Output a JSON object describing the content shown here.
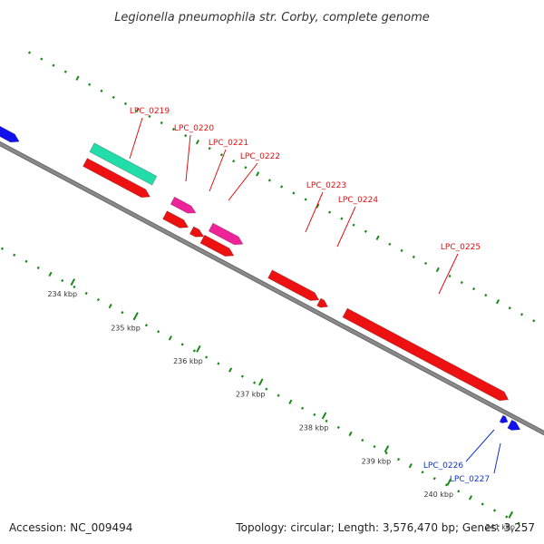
{
  "title": "Legionella pneumophila str. Corby, complete genome",
  "accession": "Accession: NC_009494",
  "summary": "Topology: circular; Length: 3,576,470 bp; Genes: 3,257",
  "colors": {
    "backbone": "#8a8a8a",
    "dots": "#1a8a1a",
    "cds_red": "#ee1111",
    "cds_magenta": "#ee2299",
    "cds_teal": "#22ddaa",
    "cds_blue": "#1111ee",
    "label_red": "#dd1111",
    "label_blue": "#1133cc"
  },
  "scale": {
    "ticks": [
      {
        "label": "234 kbp"
      },
      {
        "label": "235 kbp"
      },
      {
        "label": "236 kbp"
      },
      {
        "label": "237 kbp"
      },
      {
        "label": "238 kbp"
      },
      {
        "label": "239 kbp"
      },
      {
        "label": "240 kbp"
      },
      {
        "label": "241 kbp"
      }
    ]
  },
  "genes": [
    {
      "label": "LPC_0219",
      "color": "teal"
    },
    {
      "label": "LPC_0220",
      "color": "magenta"
    },
    {
      "label": "LPC_0221",
      "color": "red"
    },
    {
      "label": "LPC_0222",
      "color": "magenta"
    },
    {
      "label": "LPC_0223",
      "color": "red"
    },
    {
      "label": "LPC_0224",
      "color": "red"
    },
    {
      "label": "LPC_0225",
      "color": "red"
    },
    {
      "label": "LPC_0226",
      "color": "blue"
    },
    {
      "label": "LPC_0227",
      "color": "blue"
    }
  ]
}
